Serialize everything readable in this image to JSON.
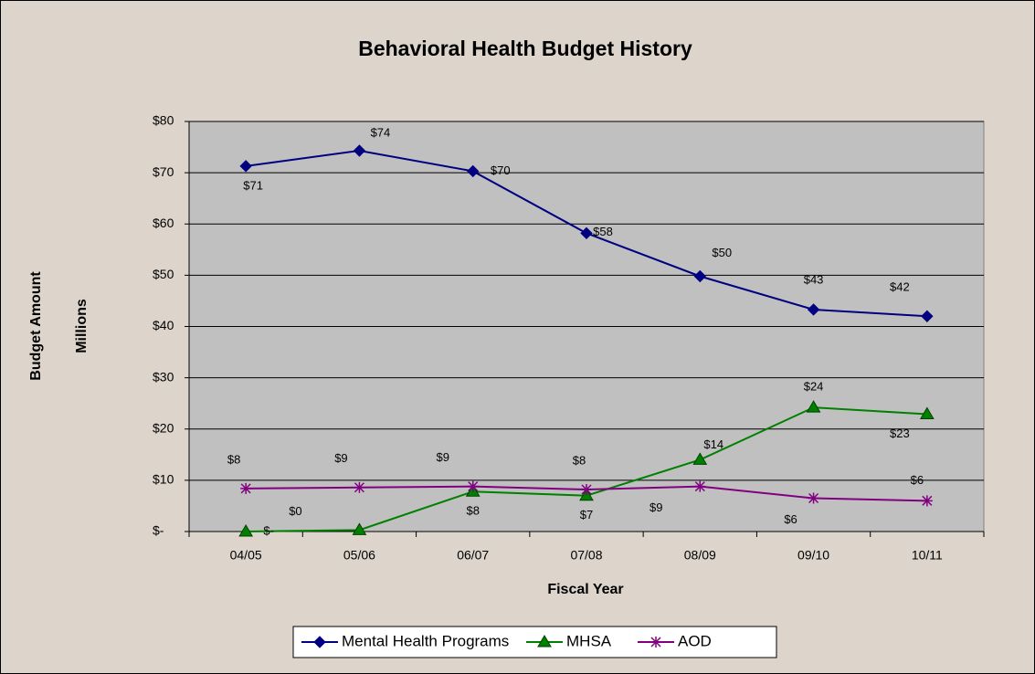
{
  "chart_data": {
    "type": "line",
    "title": "Behavioral Health Budget History",
    "y_axis_title": "Budget Amount",
    "y_axis_subtitle": "Millions",
    "x_axis_title": "Fiscal Year",
    "categories": [
      "04/05",
      "05/06",
      "06/07",
      "07/08",
      "08/09",
      "09/10",
      "10/11"
    ],
    "series": [
      {
        "name": "Mental Health Programs",
        "color": "#000080",
        "marker": "diamond",
        "values": [
          71.3,
          74.3,
          70.3,
          58.2,
          49.8,
          43.3,
          42.0
        ],
        "value_labels": [
          "$71",
          "$74",
          "$70",
          "$58",
          "$50",
          "$43",
          "$42"
        ]
      },
      {
        "name": "MHSA",
        "color": "#008000",
        "marker": "triangle",
        "values": [
          0,
          0.3,
          7.8,
          7.0,
          14.0,
          24.2,
          22.9
        ],
        "value_labels": [
          "$-",
          "$0",
          "$8",
          "$7",
          "$14",
          "$24",
          "$23"
        ]
      },
      {
        "name": "AOD",
        "color": "#800080",
        "marker": "asterisk",
        "values": [
          8.4,
          8.6,
          8.8,
          8.2,
          8.8,
          6.5,
          6.0
        ],
        "value_labels": [
          "$8",
          "$9",
          "$9",
          "$8",
          "$9",
          "$6",
          "$6"
        ]
      }
    ],
    "ylim": [
      0,
      80
    ],
    "yticks": [
      {
        "value": 0,
        "label": "$-"
      },
      {
        "value": 10,
        "label": "$10"
      },
      {
        "value": 20,
        "label": "$20"
      },
      {
        "value": 30,
        "label": "$30"
      },
      {
        "value": 40,
        "label": "$40"
      },
      {
        "value": 50,
        "label": "$50"
      },
      {
        "value": 60,
        "label": "$60"
      },
      {
        "value": 70,
        "label": "$70"
      },
      {
        "value": 80,
        "label": "$80"
      }
    ],
    "grid": true,
    "legend": "bottom"
  }
}
